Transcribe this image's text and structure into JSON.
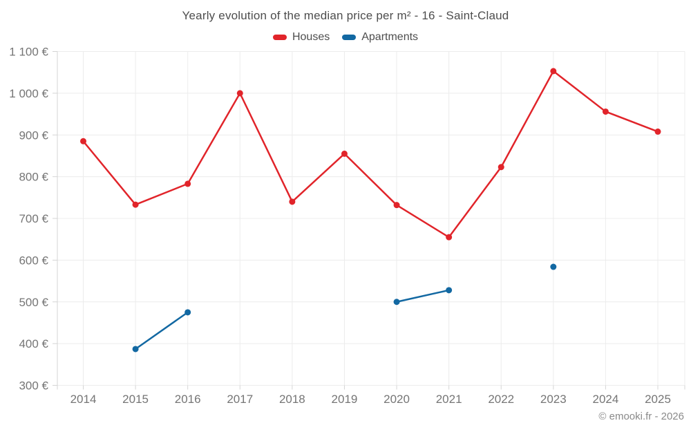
{
  "chart_data": {
    "type": "line",
    "title": "Yearly evolution of the median price per m² - 16 - Saint-Claud",
    "x": [
      2014,
      2015,
      2016,
      2017,
      2018,
      2019,
      2020,
      2021,
      2022,
      2023,
      2024,
      2025
    ],
    "series": [
      {
        "name": "Houses",
        "color": "#e1242a",
        "values": [
          885,
          733,
          783,
          1000,
          740,
          855,
          732,
          655,
          823,
          1053,
          956,
          908
        ]
      },
      {
        "name": "Apartments",
        "color": "#1268a2",
        "values": [
          null,
          387,
          475,
          null,
          null,
          null,
          500,
          528,
          null,
          584,
          null,
          null
        ]
      }
    ],
    "ylim": [
      300,
      1100
    ],
    "y_tick_step": 100,
    "y_tick_labels": [
      "300 €",
      "400 €",
      "500 €",
      "600 €",
      "700 €",
      "800 €",
      "900 €",
      "1 000 €",
      "1 100 €"
    ],
    "xlabel": "",
    "ylabel": "",
    "grid": true,
    "legend_position": "top",
    "grid_color": "#ececec",
    "axis_color": "#d4d4d4",
    "label_color": "#757575"
  },
  "footer": {
    "copyright": "© emooki.fr - 2026"
  }
}
